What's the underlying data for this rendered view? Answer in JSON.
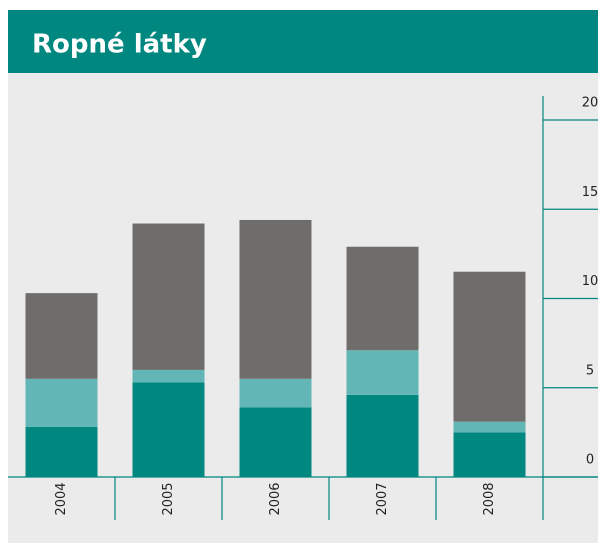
{
  "chart_data": {
    "type": "bar",
    "stacked": true,
    "title": "Ropné látky",
    "categories": [
      "2004",
      "2005",
      "2006",
      "2007",
      "2008"
    ],
    "series": [
      {
        "color": "#00877f",
        "values": [
          2.8,
          5.3,
          3.9,
          4.6,
          2.5
        ]
      },
      {
        "color": "#62b6b6",
        "values": [
          2.7,
          0.7,
          1.6,
          2.5,
          0.6
        ]
      },
      {
        "color": "#6f6d6b",
        "values": [
          4.8,
          8.2,
          8.9,
          5.8,
          8.4
        ]
      }
    ],
    "ylim": [
      0,
      20
    ],
    "yticks": [
      0,
      5,
      10,
      15,
      20
    ]
  }
}
